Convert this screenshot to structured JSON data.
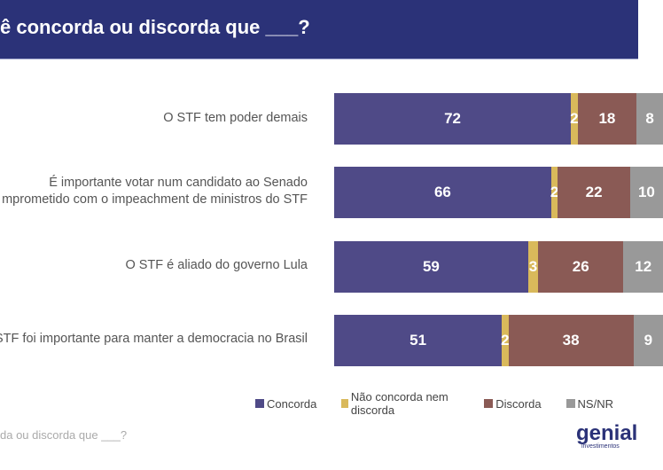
{
  "header": {
    "title": "ê concorda ou discorda que ___?"
  },
  "footer": {
    "text": "da ou discorda que ___?"
  },
  "logo": {
    "name": "genial",
    "sub": "investimentos"
  },
  "chart_data": {
    "type": "bar",
    "orientation": "horizontal",
    "stacked": true,
    "categories": [
      [
        "O STF tem poder demais"
      ],
      [
        "É importante votar num candidato ao Senado",
        "mprometido com o impeachment de ministros do STF"
      ],
      [
        "O STF é aliado do governo Lula"
      ],
      [
        "STF foi importante para manter a democracia no Brasil"
      ]
    ],
    "series": [
      {
        "name": "Concorda",
        "color": "#4f4a87",
        "values": [
          72,
          66,
          59,
          51
        ]
      },
      {
        "name": "Não concorda nem discorda",
        "color": "#d9b95b",
        "values": [
          2,
          2,
          3,
          2
        ]
      },
      {
        "name": "Discorda",
        "color": "#8a5a55",
        "values": [
          18,
          22,
          26,
          38
        ]
      },
      {
        "name": "NS/NR",
        "color": "#999999",
        "values": [
          8,
          10,
          12,
          9
        ]
      }
    ],
    "xlim": [
      0,
      100
    ],
    "grid": false,
    "legend": "bottom"
  }
}
